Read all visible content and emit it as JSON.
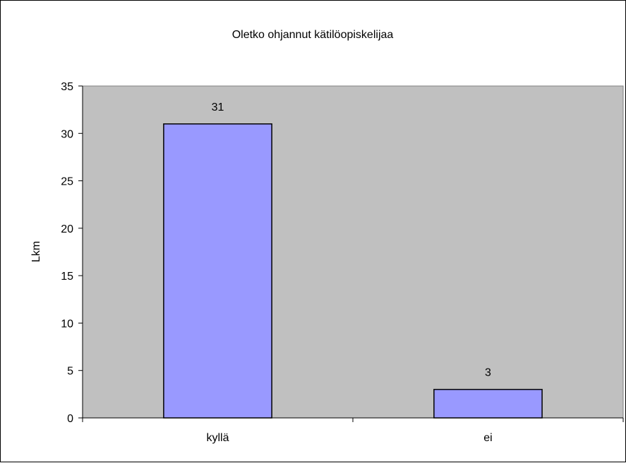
{
  "chart_data": {
    "type": "bar",
    "title": "Oletko ohjannut kätilöopiskelijaa",
    "xlabel": "",
    "ylabel": "Lkm",
    "categories": [
      "kyllä",
      "ei"
    ],
    "values": [
      31,
      3
    ],
    "data_labels": [
      "31",
      "3"
    ],
    "ylim": [
      0,
      35
    ],
    "yticks": [
      0,
      5,
      10,
      15,
      20,
      25,
      30,
      35
    ],
    "grid": false,
    "legend": "none",
    "colors": {
      "bar_fill": "#9999ff",
      "plot_background": "#c0c0c0",
      "border": "#000000"
    }
  }
}
